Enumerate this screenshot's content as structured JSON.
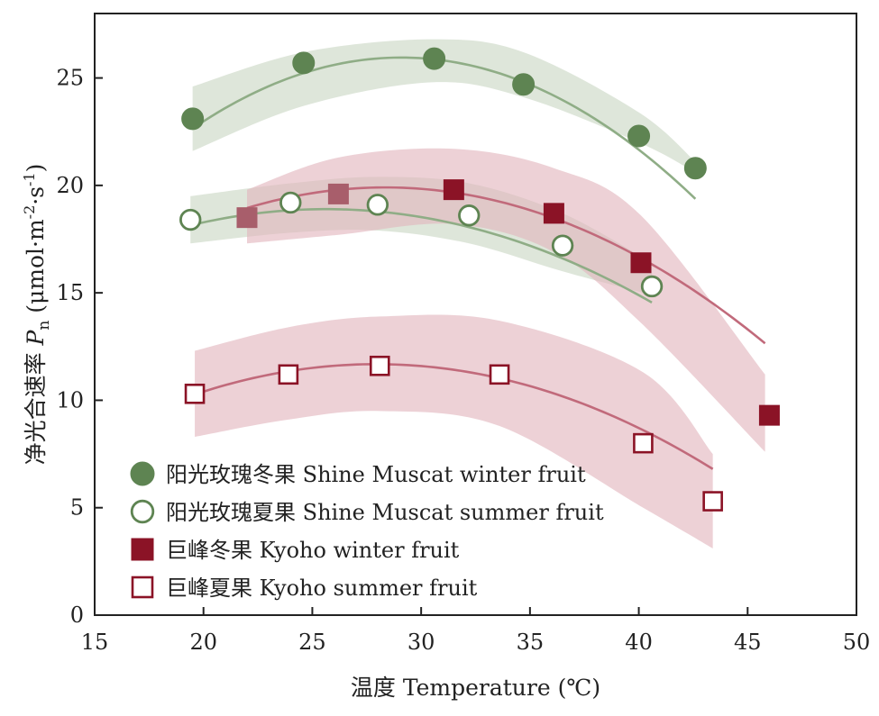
{
  "chart_data": {
    "type": "scatter",
    "xlabel": "温度 Temperature (℃)",
    "ylabel": {
      "prefix": "净光合速率 ",
      "symbol": "P",
      "symbol_sub": "n",
      "unit_open": " (μmol·m",
      "exp1": "-2",
      "mid": "·s",
      "exp2": "-1",
      "unit_close": ")"
    },
    "xlim": [
      15,
      50
    ],
    "ylim": [
      0,
      28
    ],
    "xticks": [
      15,
      20,
      25,
      30,
      35,
      40,
      45,
      50
    ],
    "yticks": [
      0,
      5,
      10,
      15,
      20,
      25
    ],
    "colors": {
      "shine": "#5e8452",
      "shine_line": "#8fad86",
      "shine_band": "#c9d6c4",
      "kyoho": "#8b1326",
      "kyoho_line": "#c16a7b",
      "kyoho_band": "#e2b4bd"
    },
    "series": [
      {
        "name": "阳光玫瑰冬果 Shine Muscat winter fruit",
        "marker": "circle-filled",
        "x": [
          19.5,
          24.6,
          30.6,
          34.7,
          40.0,
          42.6
        ],
        "y": [
          23.1,
          25.7,
          25.9,
          24.7,
          22.3,
          20.8
        ],
        "fit": [
          -0.036,
          2.094,
          -4.5
        ],
        "fit_range": [
          19.5,
          42.6
        ],
        "band": {
          "x": [
            19.5,
            24.6,
            30.5,
            34.7,
            40.0,
            42.6
          ],
          "lower": [
            21.6,
            23.7,
            24.8,
            24.1,
            22.0,
            20.6
          ],
          "upper": [
            24.6,
            26.2,
            26.8,
            26.2,
            23.4,
            21.1
          ]
        }
      },
      {
        "name": "阳光玫瑰夏果 Shine Muscat summer fruit",
        "marker": "circle-open",
        "x": [
          19.4,
          24.0,
          28.0,
          32.2,
          36.5,
          40.6
        ],
        "y": [
          18.4,
          19.2,
          19.1,
          18.6,
          17.2,
          15.3
        ],
        "fit": [
          -0.0194,
          0.9945,
          6.15
        ],
        "fit_range": [
          19.4,
          40.6
        ],
        "band": {
          "x": [
            19.4,
            24.0,
            28.0,
            32.2,
            36.5,
            40.6
          ],
          "lower": [
            17.3,
            17.8,
            17.9,
            17.3,
            16.0,
            14.9
          ],
          "upper": [
            19.5,
            20.1,
            20.4,
            20.1,
            18.7,
            16.4
          ]
        }
      },
      {
        "name": "巨峰冬果 Kyoho winter fruit",
        "marker": "square-filled",
        "x": [
          22.0,
          26.2,
          31.5,
          36.1,
          40.1,
          46.0
        ],
        "y": [
          18.5,
          19.6,
          19.8,
          18.7,
          16.4,
          9.3
        ],
        "fit": [
          -0.0238,
          1.349,
          0.79
        ],
        "fit_range": [
          22.0,
          45.8
        ],
        "band": {
          "x": [
            22.0,
            26.2,
            31.5,
            36.1,
            40.1,
            45.8
          ],
          "lower": [
            17.3,
            17.7,
            18.2,
            16.9,
            13.6,
            7.6
          ],
          "upper": [
            19.8,
            21.3,
            21.7,
            20.8,
            18.6,
            11.2
          ]
        }
      },
      {
        "name": "巨峰夏果 Kyoho summer fruit",
        "marker": "square-open",
        "x": [
          19.6,
          23.9,
          28.1,
          33.6,
          40.2,
          43.4
        ],
        "y": [
          10.3,
          11.2,
          11.6,
          11.2,
          8.0,
          5.3
        ],
        "fit": [
          -0.02037,
          1.1375,
          -4.2
        ],
        "fit_range": [
          19.6,
          43.4
        ],
        "band": {
          "x": [
            19.6,
            23.9,
            28.1,
            33.6,
            40.2,
            43.4
          ],
          "lower": [
            8.3,
            9.1,
            9.5,
            8.8,
            5.0,
            3.1
          ],
          "upper": [
            12.3,
            13.4,
            13.9,
            13.7,
            11.3,
            7.5
          ]
        }
      }
    ],
    "legend": {
      "position": "bottom-left",
      "entries": [
        "阳光玫瑰冬果 Shine Muscat winter fruit",
        "阳光玫瑰夏果 Shine Muscat summer fruit",
        "巨峰冬果 Kyoho winter fruit",
        "巨峰夏果 Kyoho summer fruit"
      ]
    }
  }
}
